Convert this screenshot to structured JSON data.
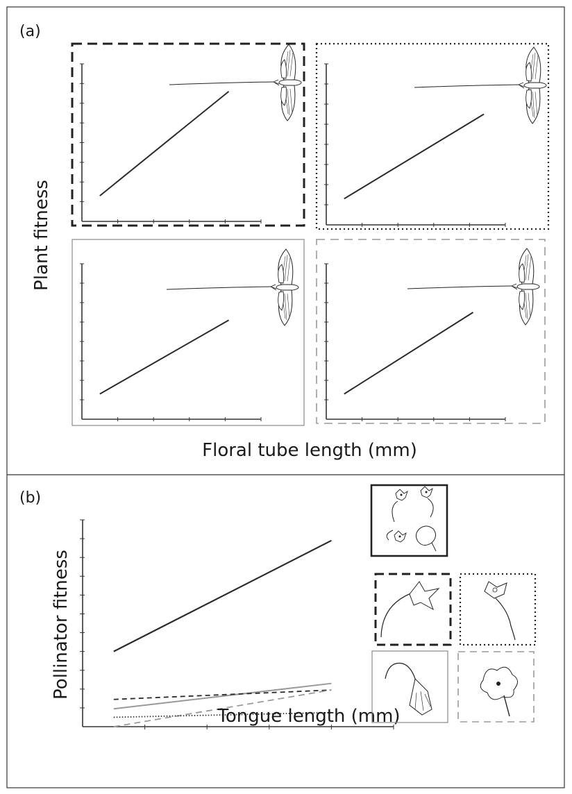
{
  "figure": {
    "panel_a_label": "(a)",
    "panel_b_label": "(b)"
  },
  "chart_data": [
    {
      "type": "line",
      "panel": "(a)",
      "ylabel": "Plant fitness",
      "xlabel": "Floral tube length (mm)",
      "xlim": [
        0,
        5
      ],
      "ylim": [
        0,
        8
      ],
      "grid": false,
      "subplots": [
        {
          "name": "black dashed",
          "frame": "black-dashed",
          "x": [
            0.5,
            4.1
          ],
          "y": [
            1.3,
            6.6
          ]
        },
        {
          "name": "black dotted",
          "frame": "black-dotted",
          "x": [
            0.5,
            4.4
          ],
          "y": [
            1.3,
            5.5
          ]
        },
        {
          "name": "gray solid",
          "frame": "gray-solid",
          "x": [
            0.5,
            4.1
          ],
          "y": [
            1.3,
            5.1
          ]
        },
        {
          "name": "gray dashed",
          "frame": "gray-dashed",
          "x": [
            0.5,
            4.1
          ],
          "y": [
            1.3,
            5.5
          ]
        }
      ]
    },
    {
      "type": "line",
      "panel": "(b)",
      "ylabel": "Pollinator fitness",
      "xlabel": "Tongue length (mm)",
      "xlim": [
        0,
        5
      ],
      "ylim": [
        0,
        11
      ],
      "grid": false,
      "series": [
        {
          "name": "black solid",
          "style": "black-solid",
          "x": [
            0.5,
            4.0
          ],
          "y": [
            4.0,
            9.9
          ]
        },
        {
          "name": "gray solid",
          "style": "gray-solid",
          "x": [
            0.5,
            4.0
          ],
          "y": [
            0.95,
            2.3
          ]
        },
        {
          "name": "black dashed",
          "style": "black-dashed",
          "x": [
            0.5,
            4.0
          ],
          "y": [
            1.45,
            1.95
          ]
        },
        {
          "name": "gray dashed",
          "style": "gray-dashed",
          "x": [
            0.5,
            4.0
          ],
          "y": [
            0.0,
            1.95
          ]
        },
        {
          "name": "black dotted",
          "style": "black-dotted",
          "x": [
            0.5,
            4.0
          ],
          "y": [
            0.5,
            0.75
          ]
        }
      ]
    }
  ]
}
